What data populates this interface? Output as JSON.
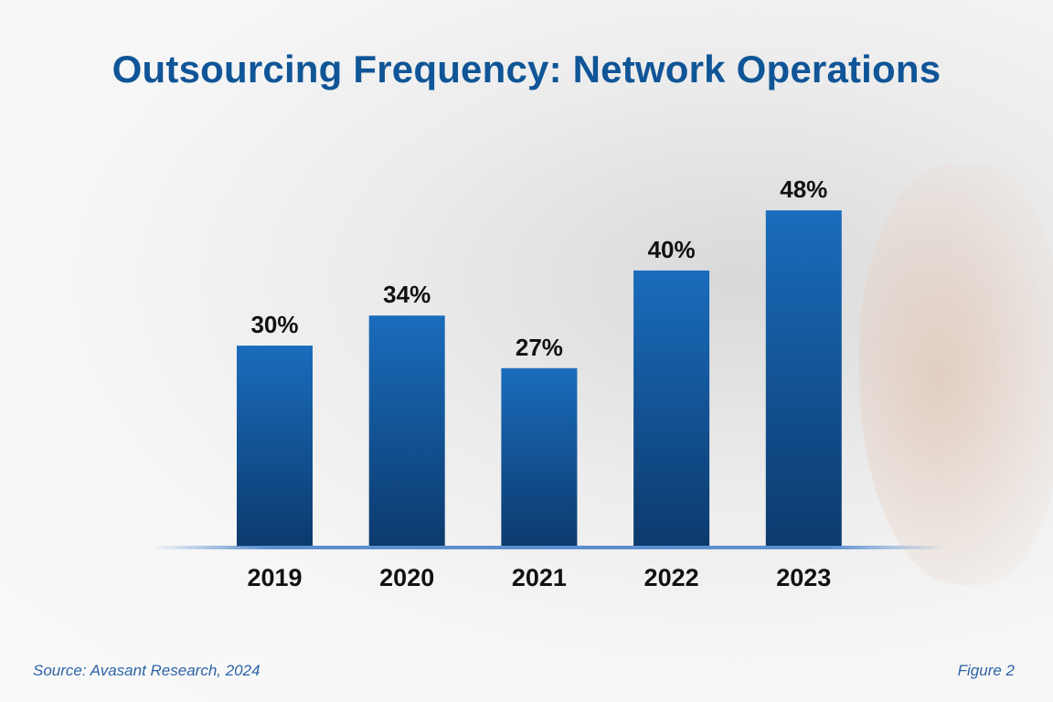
{
  "chart_data": {
    "type": "bar",
    "title": "Outsourcing Frequency: Network Operations",
    "categories": [
      "2019",
      "2020",
      "2021",
      "2022",
      "2023"
    ],
    "values": [
      30,
      34,
      27,
      40,
      48
    ],
    "data_labels": [
      "30%",
      "34%",
      "27%",
      "40%",
      "48%"
    ],
    "xlabel": "",
    "ylabel": "",
    "grid": false,
    "bar_color_top": "#1a6cbc",
    "bar_color_bottom": "#0c3a6d",
    "title_color": "#0f5597"
  },
  "footer": {
    "source": "Source: Avasant Research, 2024",
    "figure": "Figure 2"
  }
}
